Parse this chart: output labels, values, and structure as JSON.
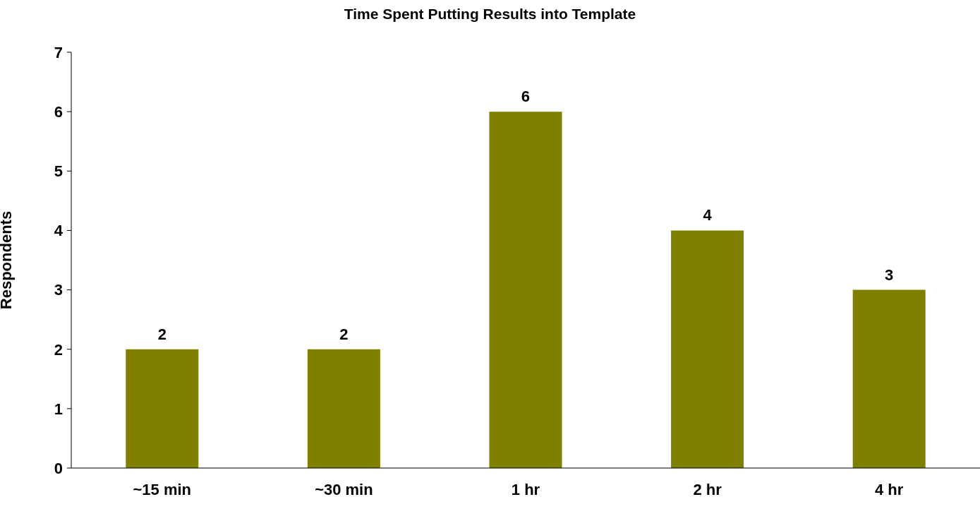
{
  "chart_data": {
    "type": "bar",
    "title": "Time Spent Putting Results into Template",
    "ylabel": "Respondents",
    "categories": [
      "~15 min",
      "~30 min",
      "1 hr",
      "2 hr",
      "4 hr"
    ],
    "values": [
      2,
      2,
      6,
      4,
      3
    ],
    "color": "#808000",
    "ylim": [
      0,
      7
    ],
    "yticks": [
      0,
      1,
      2,
      3,
      4,
      5,
      6,
      7
    ],
    "data_labels": true
  }
}
